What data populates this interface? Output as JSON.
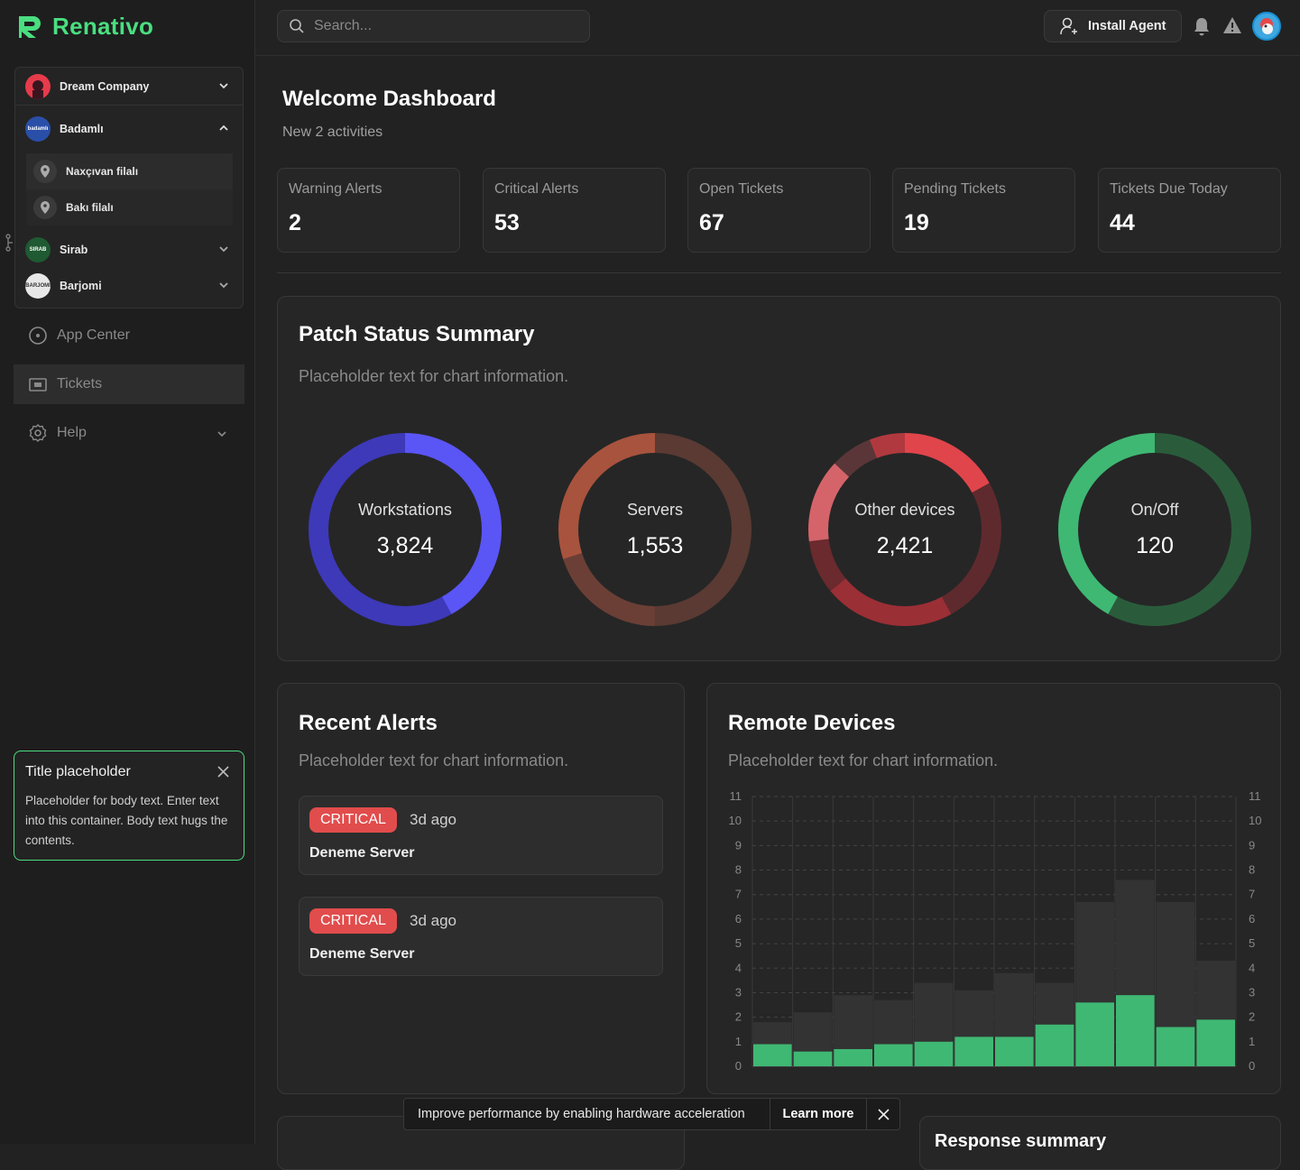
{
  "app": {
    "name": "Renativo",
    "brand_color": "#4ade80"
  },
  "search": {
    "placeholder": "Search..."
  },
  "topbar": {
    "install_label": "Install Agent"
  },
  "companies": [
    {
      "name": "Dream Company",
      "expanded": false
    },
    {
      "name": "Badamlı",
      "expanded": true,
      "branches": [
        "Naxçıvan filalı",
        "Bakı filalı"
      ]
    },
    {
      "name": "Sirab",
      "expanded": false
    },
    {
      "name": "Barjomi",
      "expanded": false
    }
  ],
  "nav": {
    "app_center": "App Center",
    "tickets": "Tickets",
    "help": "Help"
  },
  "toast_card": {
    "title": "Title placeholder",
    "body": "Placeholder for body text. Enter text into this container. Body text hugs the contents."
  },
  "welcome": {
    "title": "Welcome Dashboard",
    "subtitle": "New 2 activities"
  },
  "stats": [
    {
      "label": "Warning Alerts",
      "value": "2"
    },
    {
      "label": "Critical Alerts",
      "value": "53"
    },
    {
      "label": "Open Tickets",
      "value": "67"
    },
    {
      "label": "Pending Tickets",
      "value": "19"
    },
    {
      "label": "Tickets Due Today",
      "value": "44"
    }
  ],
  "patch": {
    "title": "Patch Status Summary",
    "subtitle": "Placeholder text for chart information.",
    "donuts": [
      {
        "label": "Workstations",
        "value": "3,824",
        "segments": [
          {
            "frac": 0.42,
            "color": "#5a55f5"
          },
          {
            "frac": 0.58,
            "color": "#3d39b8"
          }
        ]
      },
      {
        "label": "Servers",
        "value": "1,553",
        "segments": [
          {
            "frac": 0.5,
            "color": "#5a3a33"
          },
          {
            "frac": 0.2,
            "color": "#6b3f36"
          },
          {
            "frac": 0.3,
            "color": "#a8533d"
          }
        ]
      },
      {
        "label": "Other devices",
        "value": "2,421",
        "segments": [
          {
            "frac": 0.17,
            "color": "#e0454b"
          },
          {
            "frac": 0.25,
            "color": "#5f2a2e"
          },
          {
            "frac": 0.22,
            "color": "#9a2f35"
          },
          {
            "frac": 0.09,
            "color": "#6a2a2e"
          },
          {
            "frac": 0.14,
            "color": "#d4646a"
          },
          {
            "frac": 0.07,
            "color": "#5a3638"
          },
          {
            "frac": 0.06,
            "color": "#b0393f"
          }
        ]
      },
      {
        "label": "On/Off",
        "value": "120",
        "segments": [
          {
            "frac": 0.58,
            "color": "#2a5c3c"
          },
          {
            "frac": 0.42,
            "color": "#3fb873"
          }
        ]
      }
    ]
  },
  "recent_alerts": {
    "title": "Recent Alerts",
    "subtitle": "Placeholder text for chart information.",
    "items": [
      {
        "severity": "CRITICAL",
        "ago": "3d ago",
        "name": "Deneme Server"
      },
      {
        "severity": "CRITICAL",
        "ago": "3d ago",
        "name": "Deneme Server"
      }
    ]
  },
  "remote_devices": {
    "title": "Remote Devices",
    "subtitle": "Placeholder text for chart information."
  },
  "chart_data": {
    "type": "bar",
    "title": "Remote Devices",
    "ylim": [
      0,
      11
    ],
    "y_ticks": [
      "0",
      "1",
      "2",
      "3",
      "4",
      "5",
      "6",
      "7",
      "8",
      "9",
      "10",
      "11"
    ],
    "grid": true,
    "series": [
      {
        "values": [
          1.8,
          2.2,
          2.9,
          2.7,
          3.4,
          3.1,
          3.8,
          3.4,
          6.7,
          7.6,
          6.7,
          4.3
        ],
        "color": "#333333"
      },
      {
        "values": [
          0.9,
          0.6,
          0.7,
          0.9,
          1.0,
          1.2,
          1.2,
          1.7,
          2.6,
          2.9,
          1.6,
          1.9
        ],
        "color": "#3fb873"
      }
    ],
    "categories": [
      "",
      "",
      "",
      "",
      "",
      "",
      "",
      "",
      "",
      "",
      "",
      ""
    ]
  },
  "hw_toast": {
    "message": "Improve performance by enabling hardware acceleration",
    "learn_more": "Learn more"
  },
  "response_summary": {
    "title": "Response summary"
  }
}
